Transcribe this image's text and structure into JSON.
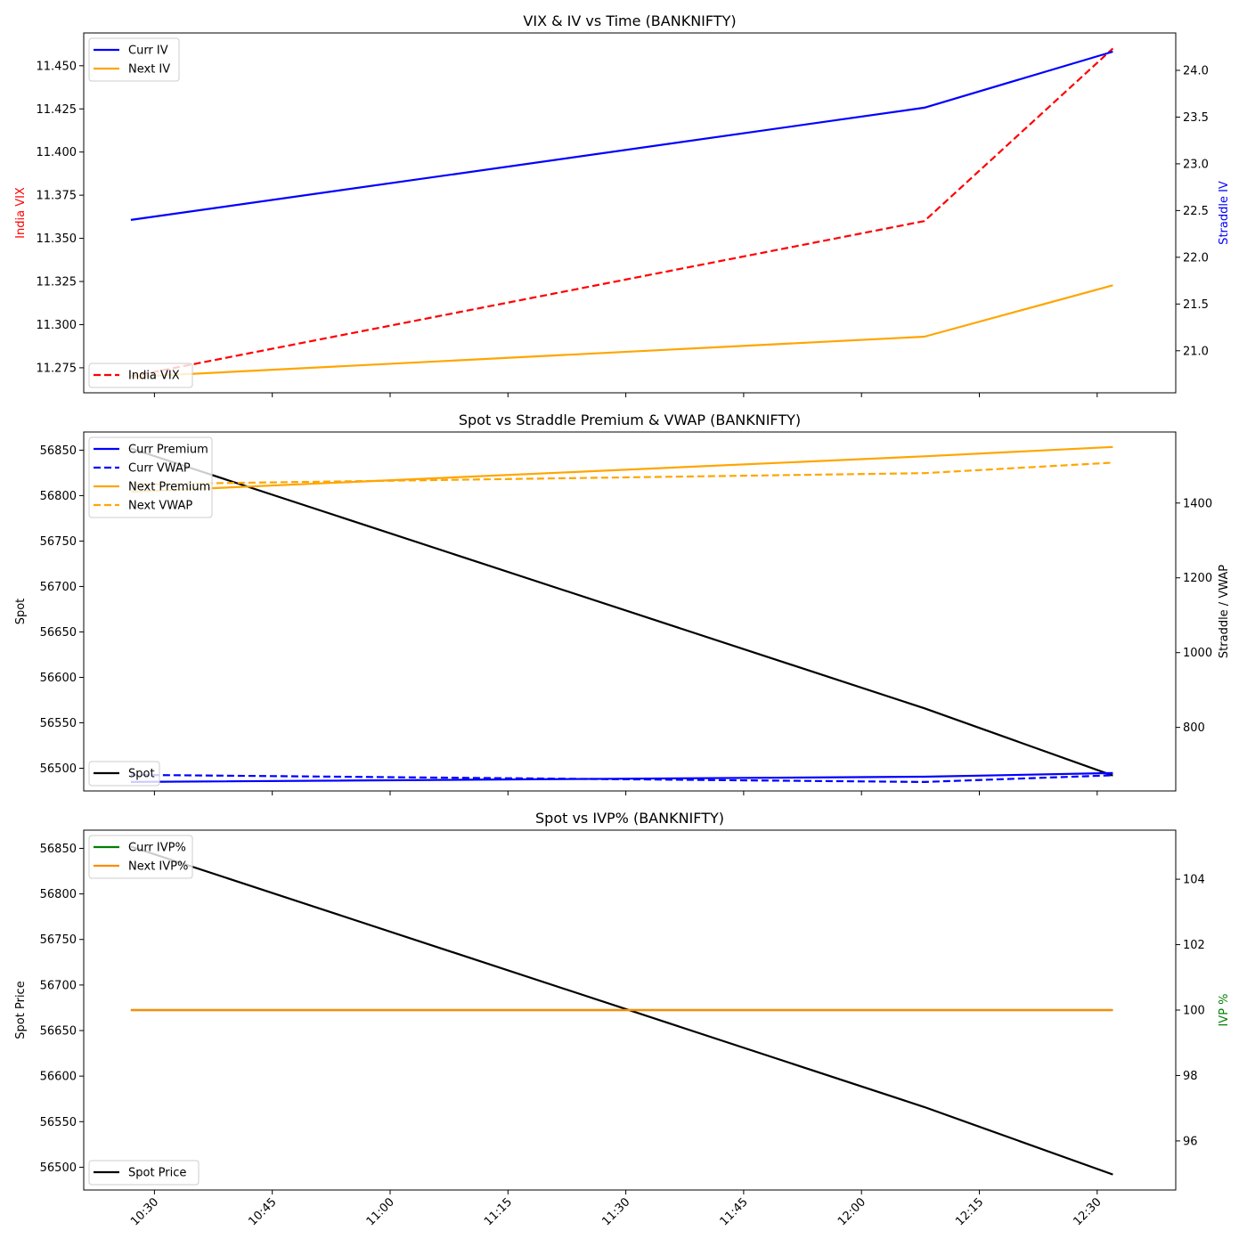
{
  "chart_data": [
    {
      "type": "line",
      "title": "VIX & IV vs Time (BANKNIFTY)",
      "xlabel": "",
      "ylabel": "India VIX",
      "ylabel_right": "Straddle IV",
      "x": [
        "10:27",
        "12:08",
        "12:32"
      ],
      "xticks": [
        "10:30",
        "10:45",
        "11:00",
        "11:15",
        "11:30",
        "11:45",
        "12:00",
        "12:15",
        "12:30"
      ],
      "xlim": [
        "10:21",
        "12:40"
      ],
      "ylim": [
        11.2605,
        11.469
      ],
      "ylim_right": [
        20.55,
        24.4
      ],
      "yticks": [
        "11.275",
        "11.300",
        "11.325",
        "11.350",
        "11.375",
        "11.400",
        "11.425",
        "11.450"
      ],
      "yticks_right": [
        "21.0",
        "21.5",
        "22.0",
        "22.5",
        "23.0",
        "23.5",
        "24.0"
      ],
      "series": [
        {
          "name": "India VIX",
          "axis": "left",
          "values": [
            11.27,
            11.36,
            11.46
          ],
          "color": "#ff0000",
          "dash": true
        },
        {
          "name": "Curr IV",
          "axis": "right",
          "values": [
            22.4,
            23.6,
            24.2
          ],
          "color": "#0000ff",
          "dash": false
        },
        {
          "name": "Next IV",
          "axis": "right",
          "values": [
            20.72,
            21.15,
            21.7
          ],
          "color": "#ffa500",
          "dash": false
        }
      ],
      "legend_right": "upper-left",
      "legend_left": "lower-left",
      "ylabel_color": "#ff0000",
      "ylabel_right_color": "#0000ff"
    },
    {
      "type": "line",
      "title": "Spot vs Straddle Premium & VWAP (BANKNIFTY)",
      "xlabel": "",
      "ylabel": "Spot",
      "ylabel_right": "Straddle / VWAP",
      "x": [
        "10:27",
        "12:08",
        "12:32"
      ],
      "xticks": [
        "10:30",
        "10:45",
        "11:00",
        "11:15",
        "11:30",
        "11:45",
        "12:00",
        "12:15",
        "12:30"
      ],
      "xlim": [
        "10:21",
        "12:40"
      ],
      "ylim": [
        56475,
        56870
      ],
      "ylim_right": [
        630,
        1590
      ],
      "yticks": [
        "56500",
        "56550",
        "56600",
        "56650",
        "56700",
        "56750",
        "56800",
        "56850"
      ],
      "yticks_right": [
        "800",
        "1000",
        "1200",
        "1400"
      ],
      "series": [
        {
          "name": "Spot",
          "axis": "left",
          "values": [
            56852,
            56566,
            56492
          ],
          "color": "#000000",
          "dash": false
        },
        {
          "name": "Curr Premium",
          "axis": "right",
          "values": [
            654,
            668,
            678
          ],
          "color": "#0000ff",
          "dash": false
        },
        {
          "name": "Curr VWAP",
          "axis": "right",
          "values": [
            673,
            654,
            672
          ],
          "color": "#0000ff",
          "dash": true
        },
        {
          "name": "Next Premium",
          "axis": "right",
          "values": [
            1430,
            1525,
            1550
          ],
          "color": "#ffa500",
          "dash": false
        },
        {
          "name": "Next VWAP",
          "axis": "right",
          "values": [
            1450,
            1480,
            1508
          ],
          "color": "#ffa500",
          "dash": true
        }
      ],
      "legend_right": "upper-left",
      "legend_left": "lower-left",
      "ylabel_color": "#000000",
      "ylabel_right_color": "#000000"
    },
    {
      "type": "line",
      "title": "Spot vs IVP% (BANKNIFTY)",
      "xlabel": "",
      "ylabel": "Spot Price",
      "ylabel_right": "IVP %",
      "x": [
        "10:27",
        "12:08",
        "12:32"
      ],
      "xticks": [
        "10:30",
        "10:45",
        "11:00",
        "11:15",
        "11:30",
        "11:45",
        "12:00",
        "12:15",
        "12:30"
      ],
      "xlim": [
        "10:21",
        "12:40"
      ],
      "ylim": [
        56475,
        56870
      ],
      "ylim_right": [
        94.5,
        105.5
      ],
      "yticks": [
        "56500",
        "56550",
        "56600",
        "56650",
        "56700",
        "56750",
        "56800",
        "56850"
      ],
      "yticks_right": [
        "96",
        "98",
        "100",
        "102",
        "104"
      ],
      "series": [
        {
          "name": "Spot Price",
          "axis": "left",
          "values": [
            56852,
            56566,
            56492
          ],
          "color": "#000000",
          "dash": false
        },
        {
          "name": "Curr IVP%",
          "axis": "right",
          "values": [
            100,
            100,
            100
          ],
          "color": "#008000",
          "dash": false
        },
        {
          "name": "Next IVP%",
          "axis": "right",
          "values": [
            100,
            100,
            100
          ],
          "color": "#ff8c00",
          "dash": false
        }
      ],
      "legend_right": "upper-left",
      "legend_left": "lower-left",
      "ylabel_color": "#000000",
      "ylabel_right_color": "#008000"
    }
  ]
}
